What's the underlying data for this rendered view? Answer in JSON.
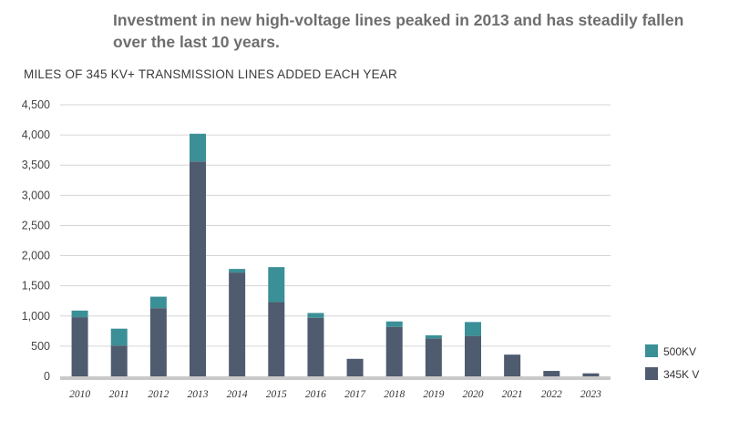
{
  "header": {
    "headline": "Investment in new high-voltage lines peaked in 2013 and has steadily fallen over the last 10 years."
  },
  "colors": {
    "kv345": "#4f5b6e",
    "kv500": "#3a9096",
    "grid": "#d6d6d6",
    "baseline": "#c9c9c9"
  },
  "chart_data": {
    "type": "bar",
    "stacked": true,
    "title": "MILES OF 345 KV+ TRANSMISSION LINES ADDED EACH YEAR",
    "categories": [
      "2010",
      "2011",
      "2012",
      "2013",
      "2014",
      "2015",
      "2016",
      "2017",
      "2018",
      "2019",
      "2020",
      "2021",
      "2022",
      "2023"
    ],
    "series": [
      {
        "name": "345K V",
        "color": "#4f5b6e",
        "values": [
          980,
          510,
          1130,
          3560,
          1720,
          1230,
          970,
          290,
          820,
          630,
          670,
          360,
          90,
          50
        ]
      },
      {
        "name": "500KV",
        "color": "#3a9096",
        "values": [
          110,
          280,
          190,
          460,
          60,
          580,
          80,
          0,
          90,
          50,
          230,
          0,
          0,
          0
        ]
      }
    ],
    "ylim": [
      0,
      4500
    ],
    "yticks": [
      "0",
      "500",
      "1,000",
      "1,500",
      "2,000",
      "2,500",
      "3,000",
      "3,500",
      "4,000",
      "4,500"
    ],
    "grid": true,
    "legend_position": "bottom-right"
  }
}
